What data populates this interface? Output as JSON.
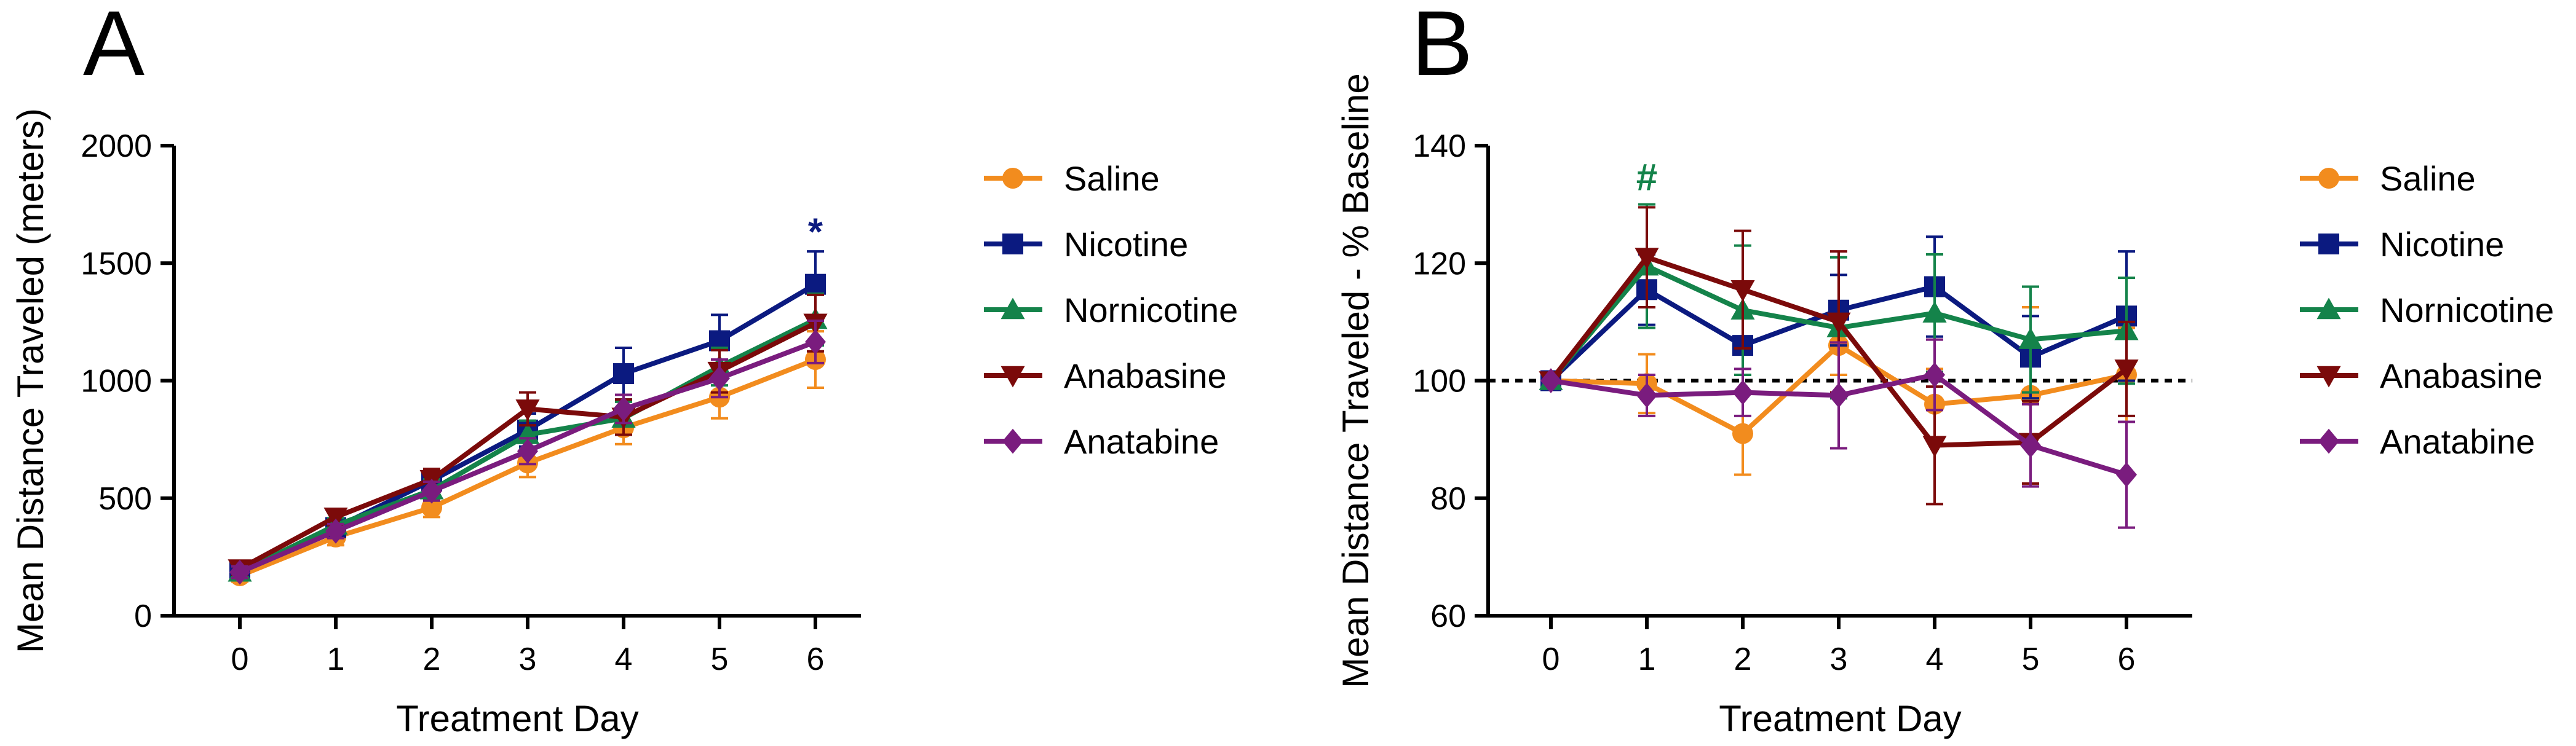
{
  "chart_data": [
    {
      "type": "line",
      "panel_label": "A",
      "xlabel": "Treatment Day",
      "ylabel": "Mean Distance Traveled (meters)",
      "x": [
        0,
        1,
        2,
        3,
        4,
        5,
        6
      ],
      "x_tick_labels": [
        "0",
        "1",
        "2",
        "3",
        "4",
        "5",
        "6"
      ],
      "ylim": [
        0,
        2000
      ],
      "y_ticks": [
        0,
        500,
        1000,
        1500,
        2000
      ],
      "y_tick_labels": [
        "0",
        "500",
        "1000",
        "1500",
        "2000"
      ],
      "reference_line": null,
      "legend_position": "right",
      "series": [
        {
          "name": "Saline",
          "color": "#F28C1E",
          "marker": "circle",
          "values": [
            170,
            335,
            460,
            650,
            800,
            930,
            1090
          ],
          "errors": [
            25,
            35,
            40,
            60,
            70,
            90,
            120
          ]
        },
        {
          "name": "Nicotine",
          "color": "#0B1A80",
          "marker": "square",
          "values": [
            190,
            375,
            575,
            790,
            1030,
            1170,
            1410
          ],
          "errors": [
            25,
            35,
            50,
            70,
            110,
            110,
            140
          ]
        },
        {
          "name": "Nornicotine",
          "color": "#14834A",
          "marker": "triangle-up",
          "values": [
            185,
            385,
            535,
            770,
            840,
            1060,
            1260
          ],
          "errors": [
            25,
            30,
            45,
            60,
            70,
            80,
            110
          ]
        },
        {
          "name": "Anabasine",
          "color": "#7B0A0A",
          "marker": "triangle-down",
          "values": [
            200,
            420,
            580,
            880,
            845,
            1040,
            1245
          ],
          "errors": [
            25,
            35,
            45,
            70,
            75,
            90,
            120
          ]
        },
        {
          "name": "Anatabine",
          "color": "#7A1C7E",
          "marker": "diamond",
          "values": [
            185,
            360,
            530,
            700,
            880,
            1010,
            1165
          ],
          "errors": [
            25,
            30,
            40,
            55,
            60,
            80,
            90
          ]
        }
      ],
      "annotations": [
        {
          "text": "*",
          "x": 6,
          "y": 1630,
          "color": "#0B1A80"
        }
      ]
    },
    {
      "type": "line",
      "panel_label": "B",
      "xlabel": "Treatment Day",
      "ylabel": "Mean Distance Traveled - % Baseline",
      "x": [
        0,
        1,
        2,
        3,
        4,
        5,
        6
      ],
      "x_tick_labels": [
        "0",
        "1",
        "2",
        "3",
        "4",
        "5",
        "6"
      ],
      "ylim": [
        60,
        140
      ],
      "y_ticks": [
        60,
        80,
        100,
        120,
        140
      ],
      "y_tick_labels": [
        "60",
        "80",
        "100",
        "120",
        "140"
      ],
      "reference_line": 100,
      "legend_position": "right",
      "series": [
        {
          "name": "Saline",
          "color": "#F28C1E",
          "marker": "circle",
          "values": [
            100,
            99.5,
            91,
            106,
            96,
            97.5,
            101
          ],
          "errors": [
            0,
            5,
            7,
            5,
            6,
            15,
            8
          ]
        },
        {
          "name": "Nicotine",
          "color": "#0B1A80",
          "marker": "square",
          "values": [
            100,
            115.5,
            106,
            112,
            116,
            104,
            111
          ],
          "errors": [
            0,
            6,
            5,
            6,
            8.5,
            7,
            11
          ]
        },
        {
          "name": "Nornicotine",
          "color": "#14834A",
          "marker": "triangle-up",
          "values": [
            100,
            119.5,
            112,
            109,
            111.5,
            107,
            108.5
          ],
          "errors": [
            0,
            10.5,
            11,
            12,
            10,
            9,
            9
          ]
        },
        {
          "name": "Anabasine",
          "color": "#7B0A0A",
          "marker": "triangle-down",
          "values": [
            100,
            121,
            115.5,
            110,
            89,
            89.5,
            102
          ],
          "errors": [
            0,
            8.5,
            10,
            12,
            10,
            7,
            8
          ]
        },
        {
          "name": "Anatabine",
          "color": "#7A1C7E",
          "marker": "diamond",
          "values": [
            100,
            97.5,
            98,
            97.5,
            101,
            89,
            84
          ],
          "errors": [
            0,
            3.5,
            4,
            9,
            6,
            7,
            9
          ]
        }
      ],
      "annotations": [
        {
          "text": "#",
          "x": 1,
          "y": 134.5,
          "color": "#14834A"
        }
      ]
    }
  ]
}
